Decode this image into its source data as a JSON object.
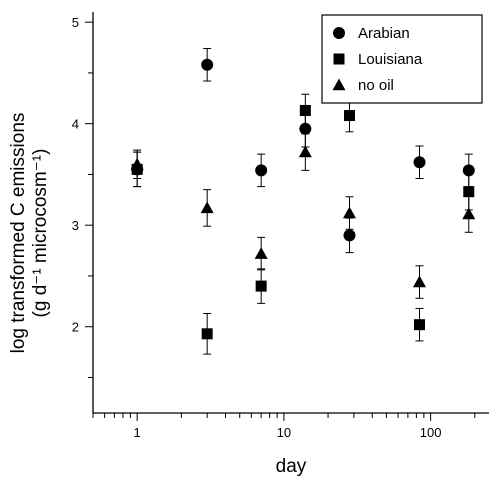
{
  "chart_data": {
    "type": "scatter",
    "title": "",
    "xlabel": "day",
    "ylabel_line1": "log transformed C emissions",
    "ylabel_line2": "(g d⁻¹ microcosm⁻¹)",
    "x_scale": "log",
    "xlim": [
      0.5,
      250
    ],
    "ylim": [
      1.15,
      5.1
    ],
    "x_ticks": [
      1,
      10,
      100
    ],
    "x_tick_labels": [
      "1",
      "10",
      "100"
    ],
    "y_ticks": [
      2,
      3,
      4,
      5
    ],
    "y_tick_labels": [
      "2",
      "3",
      "4",
      "5"
    ],
    "grid": false,
    "legend_position": "top-right",
    "series": [
      {
        "name": "Arabian",
        "marker": "circle",
        "points": [
          {
            "x": 1,
            "y": 3.55,
            "err": 0.17
          },
          {
            "x": 3,
            "y": 4.58,
            "err": 0.16
          },
          {
            "x": 7,
            "y": 3.54,
            "err": 0.16
          },
          {
            "x": 14,
            "y": 3.95,
            "err": 0.18
          },
          {
            "x": 28,
            "y": 2.9,
            "err": 0.17
          },
          {
            "x": 84,
            "y": 3.62,
            "err": 0.16
          },
          {
            "x": 182,
            "y": 3.54,
            "err": 0.16
          }
        ]
      },
      {
        "name": "Louisiana",
        "marker": "square",
        "points": [
          {
            "x": 1,
            "y": 3.55,
            "err": 0.17
          },
          {
            "x": 3,
            "y": 1.93,
            "err": 0.2
          },
          {
            "x": 7,
            "y": 2.4,
            "err": 0.17
          },
          {
            "x": 14,
            "y": 4.13,
            "err": 0.16
          },
          {
            "x": 28,
            "y": 4.08,
            "err": 0.16
          },
          {
            "x": 84,
            "y": 2.02,
            "err": 0.16
          },
          {
            "x": 182,
            "y": 3.33,
            "err": 0.18
          }
        ]
      },
      {
        "name": "no oil",
        "marker": "triangle",
        "points": [
          {
            "x": 1,
            "y": 3.6,
            "err": 0.14
          },
          {
            "x": 3,
            "y": 3.17,
            "err": 0.18
          },
          {
            "x": 7,
            "y": 2.72,
            "err": 0.16
          },
          {
            "x": 14,
            "y": 3.72,
            "err": 0.18
          },
          {
            "x": 28,
            "y": 3.12,
            "err": 0.16
          },
          {
            "x": 84,
            "y": 2.44,
            "err": 0.16
          },
          {
            "x": 182,
            "y": 3.11,
            "err": 0.18
          }
        ]
      }
    ]
  }
}
